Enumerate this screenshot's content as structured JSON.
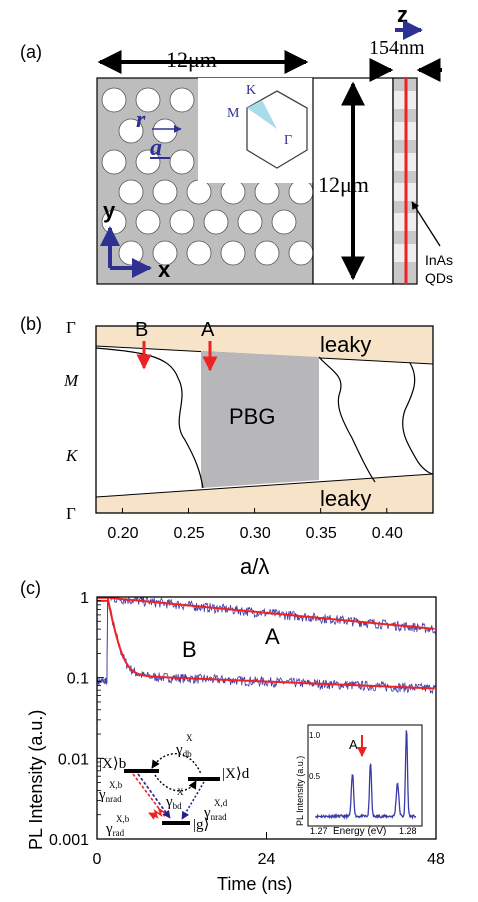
{
  "figure": {
    "panel_a": {
      "label": "(a)",
      "width_dim": "12μm",
      "height_dim": "12μm",
      "thickness_dim": "154nm",
      "axis_z": "z",
      "axis_y": "y",
      "axis_x": "x",
      "vec_r": "r",
      "vec_a": "a",
      "bz_K": "K",
      "bz_M": "M",
      "bz_Gamma": "Γ",
      "qd_label_1": "InAs",
      "qd_label_2": "QDs",
      "colors": {
        "membrane": "#bdbdbd",
        "arrow_blue": "#2e3192",
        "qd_line": "#ee2222",
        "bz_wedge": "#a8dce8"
      }
    },
    "panel_b": {
      "label": "(b)",
      "arrow_B": "B",
      "arrow_A": "A",
      "leaky_top": "leaky",
      "leaky_bottom": "leaky",
      "pbg": "PBG",
      "y_ticks": [
        "Γ",
        "M",
        "K",
        "Γ"
      ],
      "x_ticks": [
        "0.20",
        "0.25",
        "0.30",
        "0.35",
        "0.40"
      ],
      "xlabel": "a/λ",
      "colors": {
        "leaky": "#f6e3c8",
        "pbg": "#b7b7b9",
        "arrow": "#ee2222"
      }
    },
    "panel_c": {
      "label": "(c)",
      "ylabel": "PL Intensity (a.u.)",
      "xlabel": "Time (ns)",
      "y_ticks": [
        "1",
        "0.1",
        "0.01",
        "0.001"
      ],
      "x_ticks": [
        "0",
        "24",
        "48"
      ],
      "curve_A": "A",
      "curve_B": "B",
      "colors": {
        "data": "#3a3aa8",
        "fit": "#ee2222"
      },
      "scheme": {
        "Xb": "|X⟩b",
        "Xd": "|X⟩d",
        "g": "|g⟩",
        "gamma_db": "γ",
        "gamma_db_sup": "X",
        "gamma_db_sub": "db",
        "gamma_bd": "γ",
        "gamma_bd_sup": "X",
        "gamma_bd_sub": "bd",
        "gamma_nrad_b": "γ",
        "gamma_nrad_b_sup": "X,b",
        "gamma_nrad_b_sub": "nrad",
        "gamma_rad_b": "γ",
        "gamma_rad_b_sup": "X,b",
        "gamma_rad_b_sub": "rad",
        "gamma_nrad_d": "γ",
        "gamma_nrad_d_sup": "X,d",
        "gamma_nrad_d_sub": "nrad"
      },
      "inset": {
        "ylabel": "PL Intensity (a.u.)",
        "xlabel": "Energy (eV)",
        "x_ticks": [
          "1.27",
          "1.28"
        ],
        "y_ticks": [
          "0.5",
          "1.0"
        ],
        "marker": "A"
      }
    }
  },
  "chart_data": [
    {
      "type": "line",
      "title": "",
      "xlabel": "a/λ",
      "ylabel": "",
      "xlim": [
        0.18,
        0.435
      ],
      "y_categories": [
        "Γ",
        "M",
        "K",
        "Γ"
      ],
      "regions": [
        {
          "name": "PBG",
          "x": [
            0.262,
            0.356
          ]
        },
        {
          "name": "leaky",
          "position": "top"
        },
        {
          "name": "leaky",
          "position": "bottom"
        }
      ],
      "markers": [
        {
          "name": "B",
          "x": 0.221
        },
        {
          "name": "A",
          "x": 0.27
        }
      ]
    },
    {
      "type": "line",
      "title": "",
      "xlabel": "Time (ns)",
      "ylabel": "PL Intensity (a.u.)",
      "xlim": [
        0,
        48
      ],
      "ylim": [
        0.001,
        1
      ],
      "yscale": "log",
      "series": [
        {
          "name": "A",
          "x": [
            2,
            10,
            20,
            30,
            40,
            48
          ],
          "values": [
            0.95,
            0.8,
            0.65,
            0.53,
            0.45,
            0.4
          ]
        },
        {
          "name": "B",
          "x": [
            2,
            5,
            10,
            20,
            30,
            40,
            48
          ],
          "values": [
            0.95,
            0.13,
            0.105,
            0.098,
            0.092,
            0.086,
            0.082
          ]
        }
      ]
    },
    {
      "type": "line",
      "title": "",
      "xlabel": "Energy (eV)",
      "ylabel": "PL Intensity (a.u.)",
      "xlim": [
        1.269,
        1.281
      ],
      "ylim": [
        0,
        1.1
      ],
      "series": [
        {
          "name": "",
          "x": [
            1.2695,
            1.272,
            1.2735,
            1.2745,
            1.2755,
            1.277,
            1.2785,
            1.2795,
            1.2805
          ],
          "values": [
            0.05,
            0.08,
            0.48,
            0.12,
            0.62,
            0.1,
            0.38,
            1.0,
            0.08
          ]
        }
      ]
    }
  ]
}
